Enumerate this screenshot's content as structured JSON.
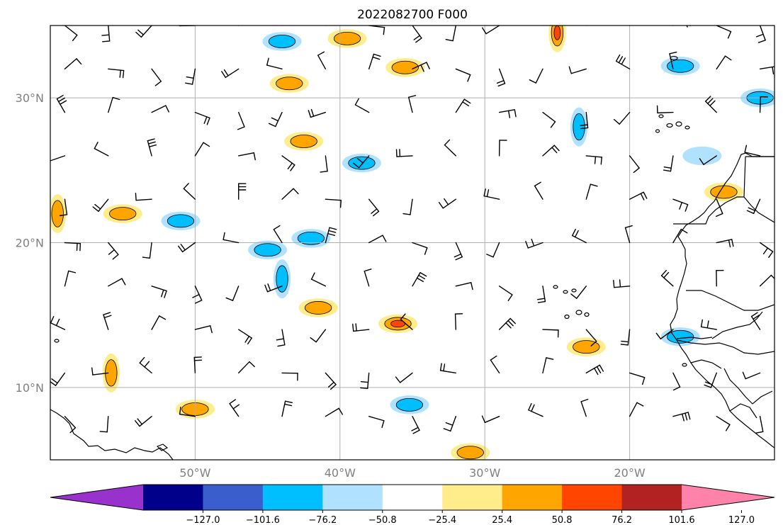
{
  "title": "2022082700 F000",
  "map": {
    "lon_range": [
      -60,
      -10
    ],
    "lat_range": [
      5,
      35
    ],
    "longitude_labels": [
      {
        "lon": -50,
        "text": "50°W"
      },
      {
        "lon": -40,
        "text": "40°W"
      },
      {
        "lon": -30,
        "text": "30°W"
      },
      {
        "lon": -20,
        "text": "20°W"
      }
    ],
    "latitude_labels": [
      {
        "lat": 30,
        "text": "30°N"
      },
      {
        "lat": 20,
        "text": "20°N"
      },
      {
        "lat": 10,
        "text": "10°N"
      }
    ],
    "gridlines": true,
    "gridline_color": "#b0b0b0",
    "label_color": "#808080",
    "coastline_color": "#000000",
    "wind_barbs": {
      "grid_spacing_deg": 3,
      "lon_start": -59,
      "lat_start": 8,
      "color": "#000000"
    },
    "shaded_features": [
      {
        "lon": -43.5,
        "lat": 31,
        "sign": 1,
        "max_level": 2
      },
      {
        "lon": -35.5,
        "lat": 32.1,
        "sign": 1,
        "max_level": 2
      },
      {
        "lon": -25,
        "lat": 34.5,
        "sign": 1,
        "max_level": 3
      },
      {
        "lon": -39.5,
        "lat": 34.1,
        "sign": 1,
        "max_level": 2
      },
      {
        "lon": -44,
        "lat": 33.9,
        "sign": -1,
        "max_level": 2
      },
      {
        "lon": -42.5,
        "lat": 27,
        "sign": 1,
        "max_level": 2
      },
      {
        "lon": -38.5,
        "lat": 25.5,
        "sign": -1,
        "max_level": 2
      },
      {
        "lon": -23.5,
        "lat": 28,
        "sign": -1,
        "max_level": 2
      },
      {
        "lon": -16.5,
        "lat": 32.2,
        "sign": -1,
        "max_level": 2
      },
      {
        "lon": -11,
        "lat": 30,
        "sign": -1,
        "max_level": 2
      },
      {
        "lon": -15,
        "lat": 26,
        "sign": -1,
        "max_level": 1
      },
      {
        "lon": -13.5,
        "lat": 23.5,
        "sign": 1,
        "max_level": 2
      },
      {
        "lon": -59.5,
        "lat": 22,
        "sign": 1,
        "max_level": 2
      },
      {
        "lon": -55,
        "lat": 22,
        "sign": 1,
        "max_level": 2
      },
      {
        "lon": -51,
        "lat": 21.5,
        "sign": -1,
        "max_level": 2
      },
      {
        "lon": -45,
        "lat": 19.5,
        "sign": -1,
        "max_level": 2
      },
      {
        "lon": -42,
        "lat": 20.3,
        "sign": -1,
        "max_level": 2
      },
      {
        "lon": -44,
        "lat": 17.5,
        "sign": -1,
        "max_level": 2
      },
      {
        "lon": -41.5,
        "lat": 15.5,
        "sign": 1,
        "max_level": 2
      },
      {
        "lon": -36,
        "lat": 14.4,
        "sign": 1,
        "max_level": 3
      },
      {
        "lon": -23,
        "lat": 12.8,
        "sign": 1,
        "max_level": 2
      },
      {
        "lon": -16.5,
        "lat": 13.5,
        "sign": -1,
        "max_level": 2
      },
      {
        "lon": -55.8,
        "lat": 11,
        "sign": 1,
        "max_level": 2
      },
      {
        "lon": -50,
        "lat": 8.5,
        "sign": 1,
        "max_level": 2
      },
      {
        "lon": -35.2,
        "lat": 8.8,
        "sign": -1,
        "max_level": 2
      },
      {
        "lon": -31,
        "lat": 5.5,
        "sign": 1,
        "max_level": 2
      }
    ]
  },
  "colorbar": {
    "colors": [
      "#9932cc",
      "#00008b",
      "#3a5fcd",
      "#00bfff",
      "#b0e2ff",
      "#ffffff",
      "#ffec8b",
      "#ffa500",
      "#ff4500",
      "#b22222",
      "#ff82ab"
    ],
    "ticks": [
      "−127.0",
      "−101.6",
      "−76.2",
      "−50.8",
      "−25.4",
      "25.4",
      "50.8",
      "76.2",
      "101.6",
      "127.0"
    ]
  }
}
